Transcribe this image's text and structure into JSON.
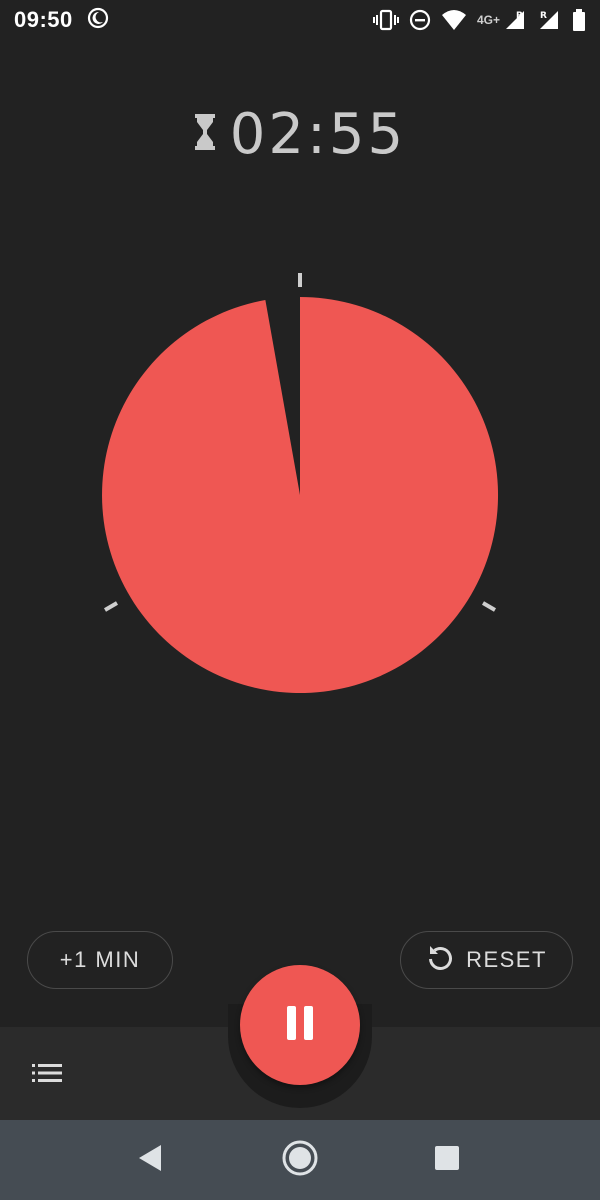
{
  "status_bar": {
    "time": "09:50",
    "network_type": "4G+",
    "icons": [
      "do-not-disturb-moon-icon",
      "vibrate-icon",
      "dnd-minus-icon",
      "wifi-icon",
      "signal-icon",
      "signal-roaming-icon",
      "battery-icon"
    ]
  },
  "timer": {
    "remaining": "02:55",
    "icon": "hourglass-icon",
    "remaining_fraction": 0.972,
    "accent_color": "#ef5753"
  },
  "actions": {
    "add_minute_label": "+1 MIN",
    "reset_label": "RESET",
    "play_pause_icon": "pause-icon"
  },
  "bottom_bar": {
    "list_icon": "list-icon"
  },
  "nav": {
    "back_icon": "back-triangle-icon",
    "home_icon": "home-circle-icon",
    "recents_icon": "recents-square-icon"
  }
}
